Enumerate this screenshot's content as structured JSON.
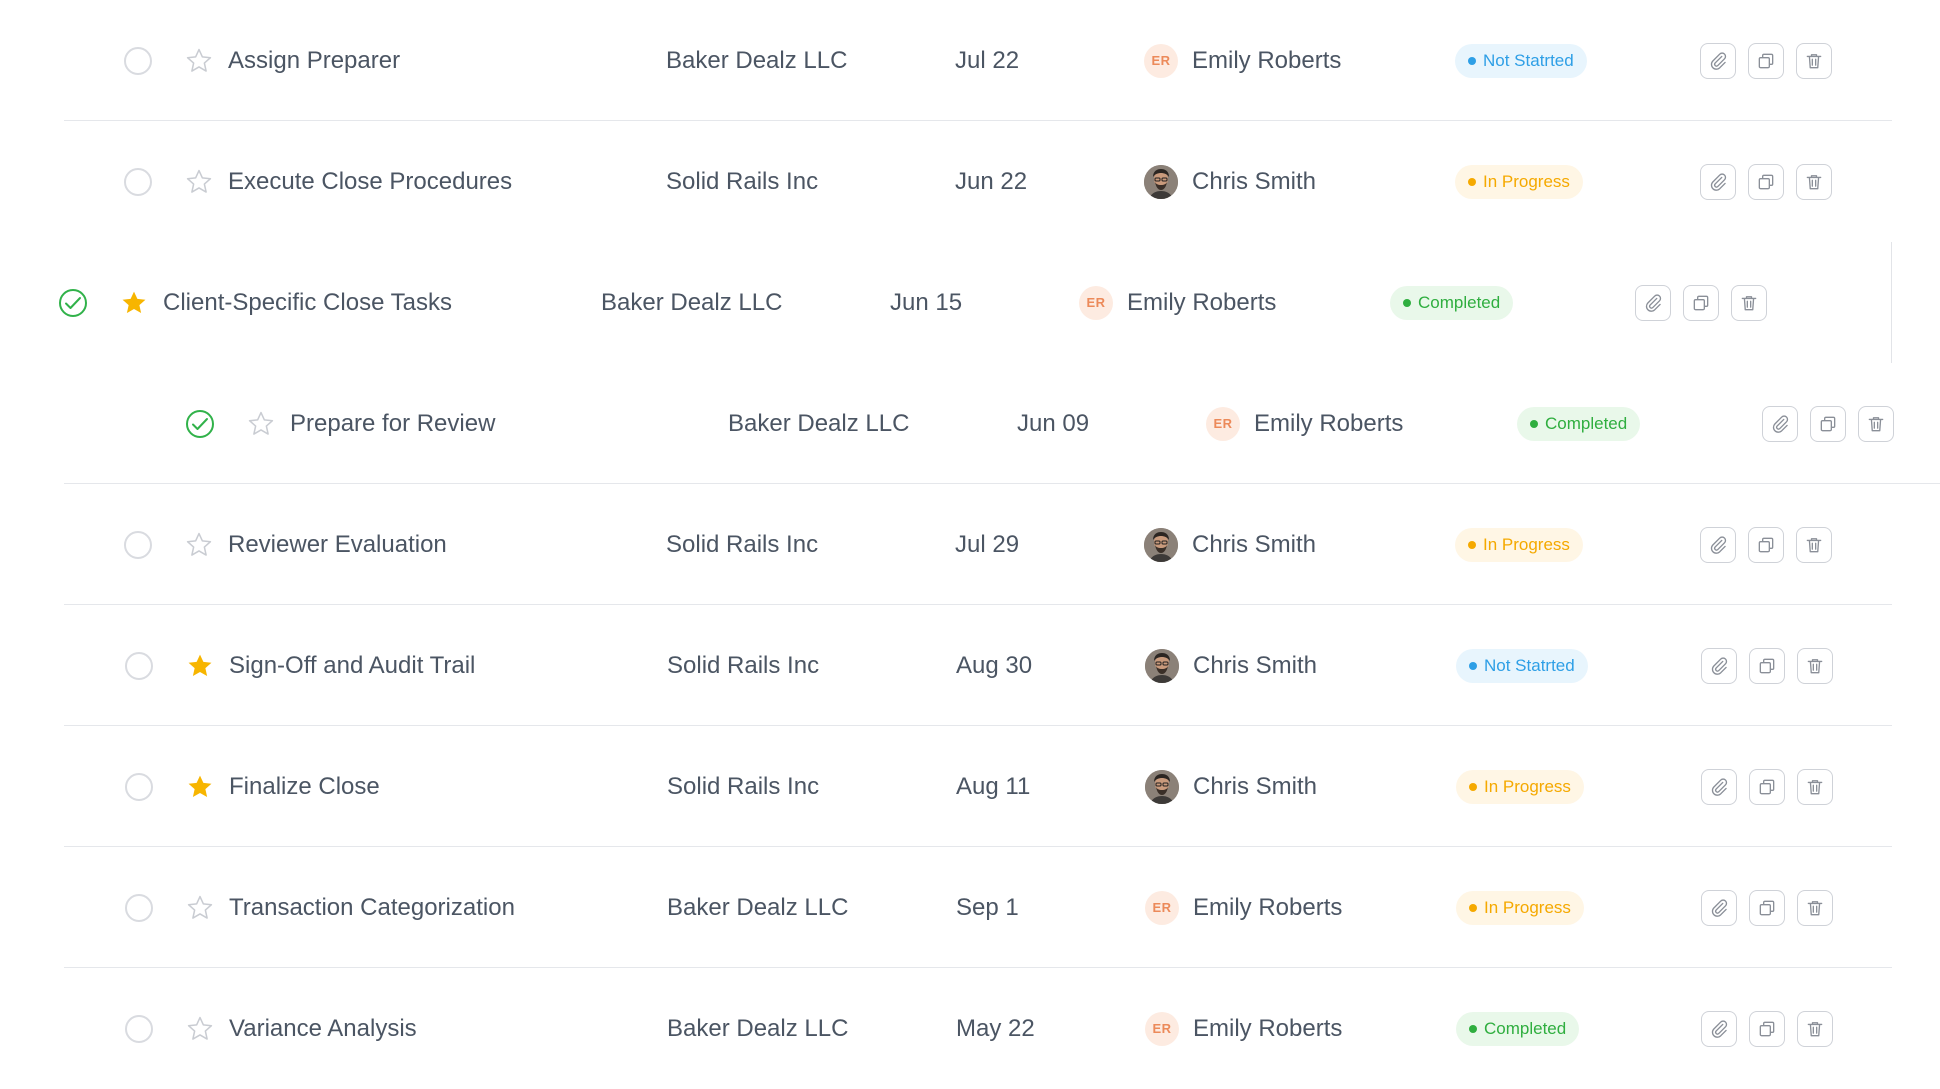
{
  "tasks": [
    {
      "title": "Assign Preparer",
      "client": "Baker Dealz LLC",
      "date": "Jul 22",
      "assignee": "Emily Roberts",
      "initials": "ER",
      "avatar": "initials",
      "status": "Not Statrted",
      "status_kind": "ns",
      "starred": false,
      "done": false
    },
    {
      "title": "Execute Close Procedures",
      "client": "Solid Rails Inc",
      "date": "Jun 22",
      "assignee": "Chris Smith",
      "initials": "",
      "avatar": "photo",
      "status": "In Progress",
      "status_kind": "ip",
      "starred": false,
      "done": false
    },
    {
      "title": "Client-Specific Close Tasks",
      "client": "Baker Dealz LLC",
      "date": "Jun 15",
      "assignee": "Emily Roberts",
      "initials": "ER",
      "avatar": "initials",
      "status": "Completed",
      "status_kind": "cp",
      "starred": true,
      "done": true
    },
    {
      "title": "Prepare for Review",
      "client": "Baker Dealz LLC",
      "date": "Jun 09",
      "assignee": "Emily Roberts",
      "initials": "ER",
      "avatar": "initials",
      "status": "Completed",
      "status_kind": "cp",
      "starred": false,
      "done": true
    },
    {
      "title": "Reviewer Evaluation",
      "client": "Solid Rails Inc",
      "date": "Jul 29",
      "assignee": "Chris Smith",
      "initials": "",
      "avatar": "photo",
      "status": "In Progress",
      "status_kind": "ip",
      "starred": false,
      "done": false
    },
    {
      "title": "Sign-Off and Audit Trail",
      "client": "Solid Rails Inc",
      "date": "Aug 30",
      "assignee": "Chris Smith",
      "initials": "",
      "avatar": "photo",
      "status": "Not Statrted",
      "status_kind": "ns",
      "starred": true,
      "done": false
    },
    {
      "title": "Finalize Close",
      "client": "Solid Rails Inc",
      "date": "Aug 11",
      "assignee": "Chris Smith",
      "initials": "",
      "avatar": "photo",
      "status": "In Progress",
      "status_kind": "ip",
      "starred": true,
      "done": false
    },
    {
      "title": "Transaction Categorization",
      "client": "Baker Dealz LLC",
      "date": "Sep 1",
      "assignee": "Emily Roberts",
      "initials": "ER",
      "avatar": "initials",
      "status": "In Progress",
      "status_kind": "ip",
      "starred": false,
      "done": false
    },
    {
      "title": "Variance Analysis",
      "client": "Baker Dealz LLC",
      "date": "May 22",
      "assignee": "Emily Roberts",
      "initials": "ER",
      "avatar": "initials",
      "status": "Completed",
      "status_kind": "cp",
      "starred": false,
      "done": false
    }
  ],
  "icons": {
    "attach": "paperclip-icon",
    "duplicate": "duplicate-icon",
    "delete": "trash-icon",
    "star": "star-icon",
    "check": "check-circle-icon"
  },
  "colors": {
    "star_active": "#f7b500",
    "star_inactive": "#c9ccd2",
    "done": "#31b24a"
  }
}
